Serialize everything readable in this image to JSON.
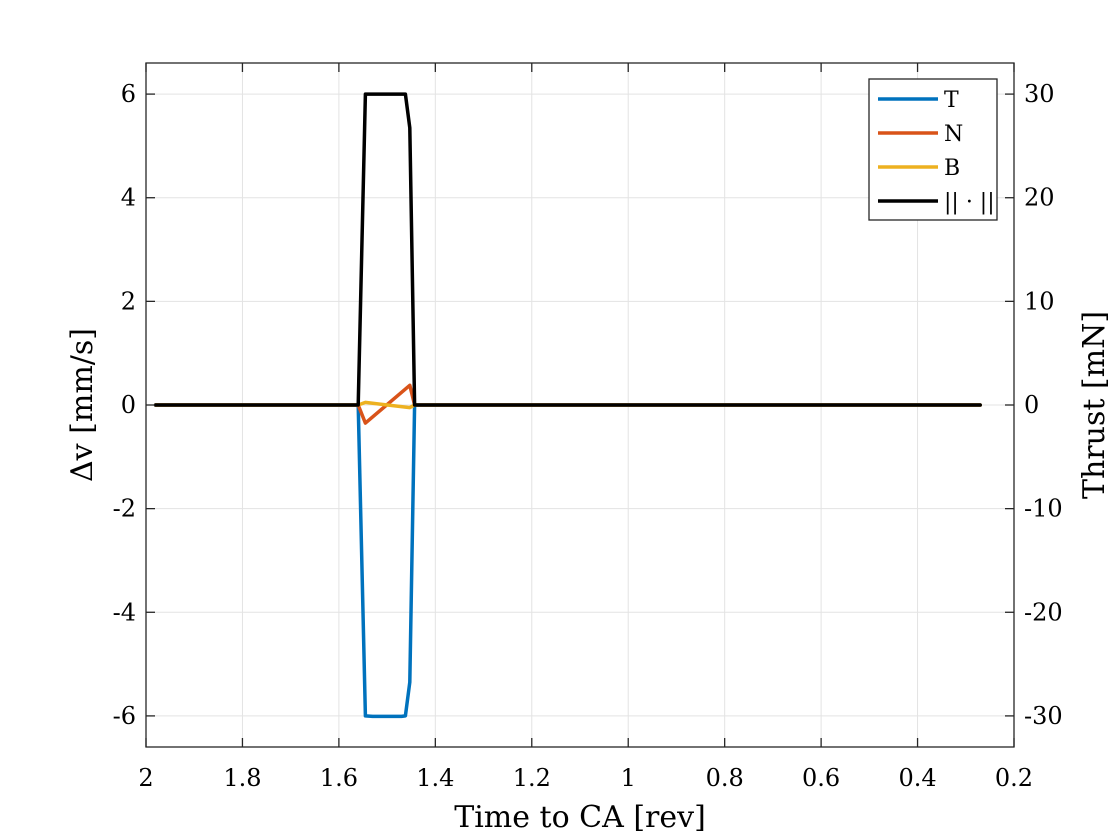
{
  "chart_data": {
    "type": "line",
    "xlabel": "Time to CA [rev]",
    "ylabel": "Δv [mm/s]",
    "ylabel_right": "Thrust [mN]",
    "xlim": [
      2,
      0.2
    ],
    "x_reversed": true,
    "ylim": [
      -6.6,
      6.6
    ],
    "ylim_right": [
      -33,
      33
    ],
    "grid": true,
    "legend_position": "top-right",
    "xticks": [
      2,
      1.8,
      1.6,
      1.4,
      1.2,
      1,
      0.8,
      0.6,
      0.4,
      0.2
    ],
    "xtick_labels": [
      "2",
      "1.8",
      "1.6",
      "1.4",
      "1.2",
      "1",
      "0.8",
      "0.6",
      "0.4",
      "0.2"
    ],
    "yticks": [
      -6,
      -4,
      -2,
      0,
      2,
      4,
      6
    ],
    "ytick_labels": [
      "-6",
      "-4",
      "-2",
      "0",
      "2",
      "4",
      "6"
    ],
    "yticks_right": [
      -30,
      -20,
      -10,
      0,
      10,
      20,
      30
    ],
    "ytick_labels_right": [
      "-30",
      "-20",
      "-10",
      "0",
      "10",
      "20",
      "30"
    ],
    "series": [
      {
        "name": "T",
        "color": "#0072BD",
        "x": [
          1.98,
          1.56,
          1.545,
          1.53,
          1.5,
          1.47,
          1.462,
          1.453,
          1.443,
          0.27
        ],
        "y": [
          0,
          0,
          -6.0,
          -6.01,
          -6.01,
          -6.01,
          -6.0,
          -5.35,
          0,
          0
        ]
      },
      {
        "name": "N",
        "color": "#D95319",
        "x": [
          1.98,
          1.56,
          1.545,
          1.453,
          1.443,
          0.27
        ],
        "y": [
          0,
          0,
          -0.35,
          0.38,
          0,
          0
        ]
      },
      {
        "name": "B",
        "color": "#EDB120",
        "x": [
          1.98,
          1.56,
          1.545,
          1.453,
          1.443,
          0.27
        ],
        "y": [
          0,
          0,
          0.05,
          -0.05,
          0,
          0
        ]
      },
      {
        "name": "|| · ||",
        "color": "#000000",
        "x": [
          1.98,
          1.56,
          1.545,
          1.53,
          1.5,
          1.47,
          1.462,
          1.453,
          1.443,
          0.27
        ],
        "y": [
          0,
          0,
          6.0,
          6.0,
          6.0,
          6.0,
          6.0,
          5.35,
          0,
          0
        ]
      }
    ]
  }
}
